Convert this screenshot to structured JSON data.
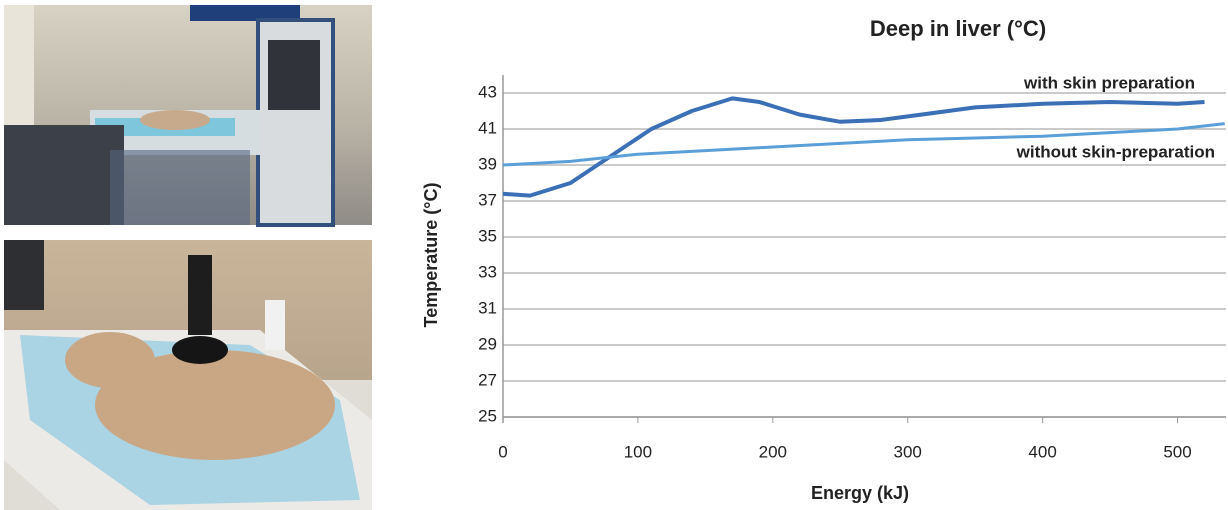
{
  "chart_data": {
    "type": "line",
    "title": "Deep in liver (°C)",
    "x_label": "Energy (kJ)",
    "y_label": "Temperature (°C)",
    "xlim": [
      0,
      530
    ],
    "xticks": [
      0,
      100,
      200,
      300,
      400,
      500
    ],
    "ylim": [
      25,
      44
    ],
    "yticks": [
      25,
      27,
      29,
      31,
      33,
      35,
      37,
      39,
      41,
      43
    ],
    "grid": true,
    "series": [
      {
        "name": "with skin preparation",
        "color": "#3b6fb6",
        "x": [
          0,
          20,
          50,
          80,
          110,
          140,
          170,
          190,
          220,
          250,
          280,
          310,
          350,
          400,
          450,
          500,
          520
        ],
        "values": [
          37.4,
          37.3,
          38.0,
          39.5,
          41.0,
          42.0,
          42.7,
          42.5,
          41.8,
          41.4,
          41.5,
          41.8,
          42.2,
          42.4,
          42.5,
          42.4,
          42.5
        ]
      },
      {
        "name": "without skin-preparation",
        "color": "#5b9fd9",
        "x": [
          0,
          50,
          100,
          150,
          200,
          250,
          300,
          350,
          400,
          450,
          500,
          535
        ],
        "values": [
          39.0,
          39.2,
          39.6,
          39.8,
          40.0,
          40.2,
          40.4,
          40.5,
          40.6,
          40.8,
          41.0,
          41.3
        ]
      }
    ]
  }
}
